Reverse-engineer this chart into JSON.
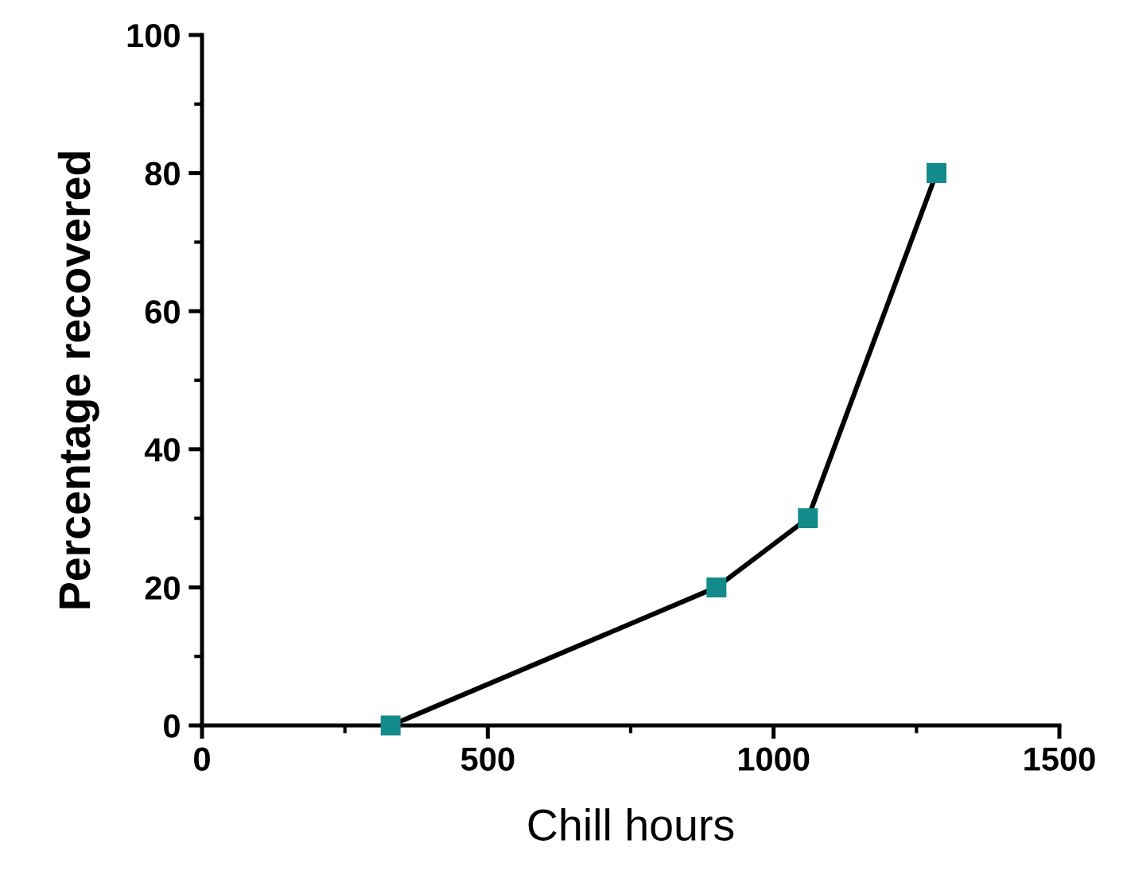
{
  "chart_data": {
    "type": "line",
    "xlabel": "Chill hours",
    "ylabel": "Percentage recovered",
    "x": [
      330,
      900,
      1060,
      1285
    ],
    "series": [
      {
        "color": "#138b8b",
        "values": [
          0,
          20,
          30,
          80
        ]
      }
    ],
    "xlim": [
      0,
      1500
    ],
    "xticks": [
      0,
      500,
      1000,
      1500
    ],
    "ylim": [
      0,
      100
    ],
    "yticks": [
      0,
      20,
      40,
      60,
      80,
      100
    ],
    "marker": "square",
    "line_style": "solid",
    "grid": false
  }
}
